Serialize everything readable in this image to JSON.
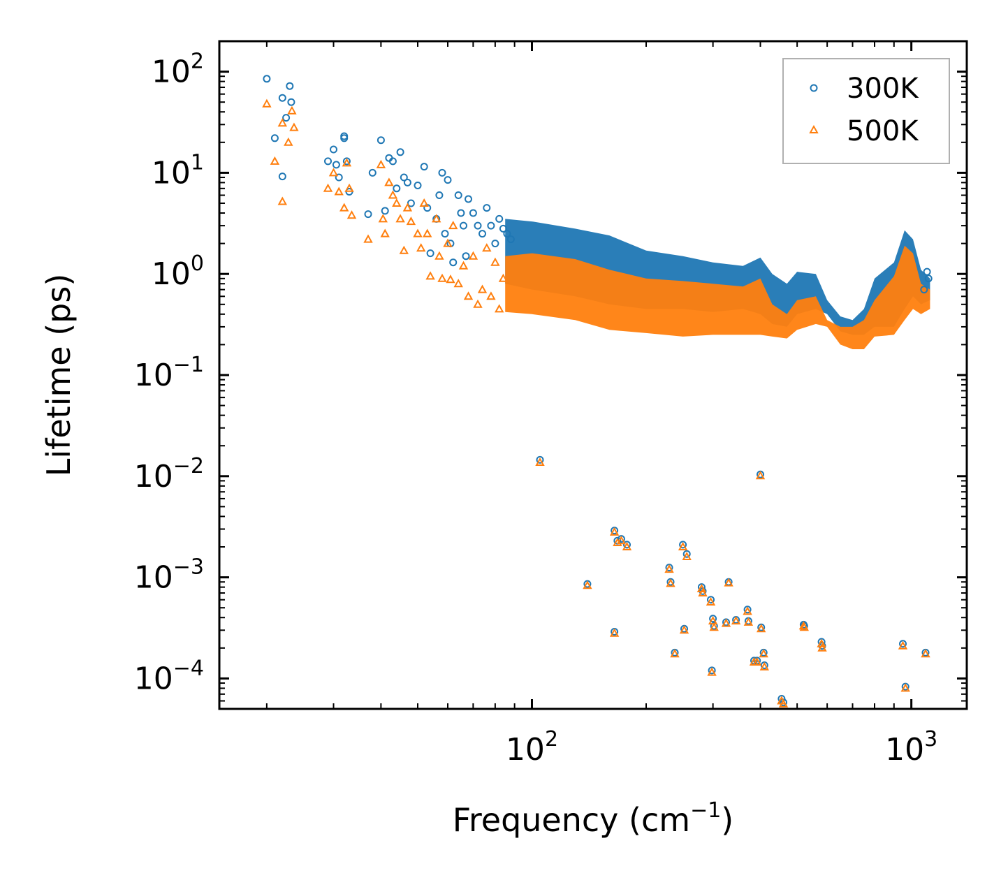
{
  "chart_data": {
    "type": "scatter",
    "title": "",
    "xlabel": "Frequency (cm",
    "xlabel_sup": "−1",
    "xlabel_end": ")",
    "ylabel": "Lifetime (ps)",
    "xscale": "log",
    "yscale": "log",
    "xlim": [
      15,
      1400
    ],
    "ylim": [
      5e-05,
      200
    ],
    "x_ticks": [
      {
        "value": 100,
        "base": "10",
        "exp": "2"
      },
      {
        "value": 1000,
        "base": "10",
        "exp": "3"
      }
    ],
    "y_ticks": [
      {
        "value": 100,
        "base": "10",
        "exp": "2"
      },
      {
        "value": 10,
        "base": "10",
        "exp": "1"
      },
      {
        "value": 1,
        "base": "10",
        "exp": "0"
      },
      {
        "value": 0.1,
        "base": "10",
        "exp": "−1"
      },
      {
        "value": 0.01,
        "base": "10",
        "exp": "−2"
      },
      {
        "value": 0.001,
        "base": "10",
        "exp": "−3"
      },
      {
        "value": 0.0001,
        "base": "10",
        "exp": "−4"
      }
    ],
    "legend_position": "top-right",
    "colors": {
      "300K": "#1f77b4",
      "500K": "#ff7f0e"
    },
    "series": [
      {
        "name": "300K",
        "marker": "circle",
        "color": "#1f77b4",
        "points": [
          [
            20,
            85
          ],
          [
            21,
            22
          ],
          [
            22,
            55
          ],
          [
            22.5,
            35
          ],
          [
            23,
            72
          ],
          [
            23.2,
            50
          ],
          [
            22,
            9.2
          ],
          [
            29,
            13
          ],
          [
            30,
            17
          ],
          [
            30.5,
            12
          ],
          [
            31,
            9
          ],
          [
            32,
            22
          ],
          [
            32,
            23
          ],
          [
            32.5,
            13
          ],
          [
            33,
            6.5
          ],
          [
            37,
            3.9
          ],
          [
            38,
            10
          ],
          [
            40,
            21
          ],
          [
            41,
            4.2
          ],
          [
            42,
            14
          ],
          [
            43,
            13
          ],
          [
            44,
            7
          ],
          [
            45,
            16
          ],
          [
            46,
            9
          ],
          [
            47,
            8
          ],
          [
            48,
            5
          ],
          [
            50,
            7.5
          ],
          [
            52,
            11.5
          ],
          [
            53,
            4.5
          ],
          [
            54,
            1.6
          ],
          [
            56,
            3.5
          ],
          [
            57,
            6
          ],
          [
            58,
            10
          ],
          [
            59,
            2.5
          ],
          [
            60,
            8.5
          ],
          [
            61,
            2
          ],
          [
            62,
            1.3
          ],
          [
            64,
            6
          ],
          [
            65,
            4
          ],
          [
            66,
            3
          ],
          [
            67,
            1.5
          ],
          [
            68,
            5.5
          ],
          [
            70,
            4
          ],
          [
            72,
            3
          ],
          [
            74,
            2.5
          ],
          [
            76,
            4.5
          ],
          [
            78,
            3
          ],
          [
            80,
            2
          ],
          [
            82,
            3.5
          ],
          [
            84,
            2.8
          ],
          [
            86,
            2.5
          ],
          [
            88,
            2.2
          ],
          [
            105,
            0.0145
          ],
          [
            140,
            0.00086
          ],
          [
            165,
            0.0029
          ],
          [
            165,
            0.00029
          ],
          [
            168,
            0.0023
          ],
          [
            172,
            0.0024
          ],
          [
            178,
            0.0021
          ],
          [
            230,
            0.00125
          ],
          [
            232,
            0.0009
          ],
          [
            238,
            0.00018
          ],
          [
            250,
            0.0021
          ],
          [
            252,
            0.00031
          ],
          [
            256,
            0.0017
          ],
          [
            280,
            0.0008
          ],
          [
            282,
            0.00073
          ],
          [
            296,
            0.0006
          ],
          [
            298,
            0.00012
          ],
          [
            300,
            0.00039
          ],
          [
            302,
            0.00033
          ],
          [
            325,
            0.00036
          ],
          [
            330,
            0.0009
          ],
          [
            345,
            0.00038
          ],
          [
            370,
            0.00048
          ],
          [
            372,
            0.00037
          ],
          [
            385,
            0.00015
          ],
          [
            392,
            0.00015
          ],
          [
            400,
            0.0104
          ],
          [
            402,
            0.00032
          ],
          [
            408,
            0.00018
          ],
          [
            410,
            0.000135
          ],
          [
            455,
            6.3e-05
          ],
          [
            460,
            5.8e-05
          ],
          [
            520,
            0.00034
          ],
          [
            522,
            0.00033
          ],
          [
            580,
            0.00023
          ],
          [
            582,
            0.00021
          ],
          [
            950,
            0.00022
          ],
          [
            965,
            8.3e-05
          ],
          [
            1090,
            0.00018
          ],
          [
            1110,
            0.9
          ],
          [
            1100,
            1.05
          ],
          [
            1080,
            0.7
          ]
        ]
      },
      {
        "name": "500K",
        "marker": "triangle",
        "color": "#ff7f0e",
        "points": [
          [
            20,
            48
          ],
          [
            21,
            13
          ],
          [
            22,
            31
          ],
          [
            22,
            5.2
          ],
          [
            22.8,
            20
          ],
          [
            23.3,
            41
          ],
          [
            23.6,
            28
          ],
          [
            29,
            7
          ],
          [
            30,
            10
          ],
          [
            31,
            6.5
          ],
          [
            32,
            4.5
          ],
          [
            32.5,
            12.5
          ],
          [
            33,
            7
          ],
          [
            33.5,
            3.8
          ],
          [
            37,
            2.2
          ],
          [
            40,
            12
          ],
          [
            40.5,
            3.5
          ],
          [
            41,
            2.5
          ],
          [
            42,
            8
          ],
          [
            43,
            6
          ],
          [
            44,
            5
          ],
          [
            45,
            3.5
          ],
          [
            46,
            1.7
          ],
          [
            47,
            4.5
          ],
          [
            48,
            3.3
          ],
          [
            50,
            2.5
          ],
          [
            51,
            1.8
          ],
          [
            52,
            5
          ],
          [
            53,
            2.5
          ],
          [
            54,
            0.95
          ],
          [
            56,
            3.5
          ],
          [
            57,
            1.5
          ],
          [
            58,
            0.9
          ],
          [
            60,
            2
          ],
          [
            61,
            0.88
          ],
          [
            62,
            3
          ],
          [
            64,
            0.8
          ],
          [
            66,
            1.2
          ],
          [
            68,
            0.6
          ],
          [
            70,
            1.5
          ],
          [
            72,
            0.5
          ],
          [
            74,
            0.7
          ],
          [
            76,
            1.8
          ],
          [
            78,
            0.6
          ],
          [
            80,
            1.3
          ],
          [
            82,
            0.45
          ],
          [
            84,
            0.9
          ],
          [
            105,
            0.0137
          ],
          [
            140,
            0.00083
          ],
          [
            165,
            0.0028
          ],
          [
            165,
            0.00028
          ],
          [
            168,
            0.0022
          ],
          [
            172,
            0.0023
          ],
          [
            178,
            0.002
          ],
          [
            230,
            0.0012
          ],
          [
            232,
            0.00087
          ],
          [
            238,
            0.000175
          ],
          [
            250,
            0.002
          ],
          [
            252,
            0.0003
          ],
          [
            256,
            0.0016
          ],
          [
            280,
            0.00077
          ],
          [
            282,
            0.0007
          ],
          [
            296,
            0.00057
          ],
          [
            298,
            0.000115
          ],
          [
            300,
            0.00037
          ],
          [
            302,
            0.00032
          ],
          [
            325,
            0.00035
          ],
          [
            330,
            0.00088
          ],
          [
            345,
            0.00037
          ],
          [
            370,
            0.00046
          ],
          [
            372,
            0.00036
          ],
          [
            385,
            0.000145
          ],
          [
            392,
            0.000145
          ],
          [
            400,
            0.0101
          ],
          [
            402,
            0.00031
          ],
          [
            408,
            0.000175
          ],
          [
            410,
            0.00013
          ],
          [
            455,
            6e-05
          ],
          [
            460,
            5.6e-05
          ],
          [
            520,
            0.00033
          ],
          [
            522,
            0.00032
          ],
          [
            580,
            0.00022
          ],
          [
            582,
            0.0002
          ],
          [
            950,
            0.00021
          ],
          [
            965,
            8e-05
          ],
          [
            1090,
            0.000175
          ]
        ]
      }
    ],
    "bands": [
      {
        "series": "300K",
        "color": "#1f77b4",
        "note": "dense cluster of overlapping points",
        "upper": [
          [
            85,
            3.5
          ],
          [
            100,
            3.3
          ],
          [
            130,
            2.8
          ],
          [
            160,
            2.4
          ],
          [
            200,
            1.7
          ],
          [
            250,
            1.5
          ],
          [
            300,
            1.3
          ],
          [
            360,
            1.2
          ],
          [
            400,
            1.45
          ],
          [
            430,
            1.0
          ],
          [
            470,
            0.8
          ],
          [
            500,
            1.05
          ],
          [
            560,
            1.0
          ],
          [
            600,
            0.55
          ],
          [
            650,
            0.38
          ],
          [
            700,
            0.35
          ],
          [
            750,
            0.45
          ],
          [
            800,
            0.9
          ],
          [
            900,
            1.3
          ],
          [
            960,
            2.7
          ],
          [
            1010,
            2.2
          ],
          [
            1060,
            1.1
          ],
          [
            1120,
            0.9
          ]
        ],
        "lower": [
          [
            1120,
            0.55
          ],
          [
            1060,
            0.5
          ],
          [
            1010,
            0.6
          ],
          [
            960,
            0.45
          ],
          [
            900,
            0.3
          ],
          [
            800,
            0.3
          ],
          [
            750,
            0.25
          ],
          [
            700,
            0.25
          ],
          [
            650,
            0.27
          ],
          [
            600,
            0.4
          ],
          [
            560,
            0.45
          ],
          [
            500,
            0.4
          ],
          [
            470,
            0.3
          ],
          [
            430,
            0.32
          ],
          [
            400,
            0.4
          ],
          [
            360,
            0.45
          ],
          [
            300,
            0.42
          ],
          [
            250,
            0.45
          ],
          [
            200,
            0.45
          ],
          [
            160,
            0.5
          ],
          [
            130,
            0.6
          ],
          [
            100,
            0.7
          ],
          [
            85,
            0.8
          ]
        ]
      },
      {
        "series": "500K",
        "color": "#ff7f0e",
        "note": "dense cluster of overlapping points",
        "upper": [
          [
            85,
            1.5
          ],
          [
            100,
            1.6
          ],
          [
            130,
            1.4
          ],
          [
            160,
            1.1
          ],
          [
            200,
            0.9
          ],
          [
            250,
            0.85
          ],
          [
            300,
            0.8
          ],
          [
            360,
            0.75
          ],
          [
            400,
            0.9
          ],
          [
            430,
            0.5
          ],
          [
            470,
            0.4
          ],
          [
            500,
            0.55
          ],
          [
            560,
            0.6
          ],
          [
            600,
            0.35
          ],
          [
            650,
            0.3
          ],
          [
            700,
            0.3
          ],
          [
            750,
            0.35
          ],
          [
            800,
            0.55
          ],
          [
            900,
            0.95
          ],
          [
            960,
            1.9
          ],
          [
            1010,
            1.6
          ],
          [
            1060,
            0.8
          ],
          [
            1120,
            0.7
          ]
        ],
        "lower": [
          [
            1120,
            0.45
          ],
          [
            1060,
            0.4
          ],
          [
            1010,
            0.45
          ],
          [
            960,
            0.35
          ],
          [
            900,
            0.25
          ],
          [
            800,
            0.24
          ],
          [
            750,
            0.18
          ],
          [
            700,
            0.18
          ],
          [
            650,
            0.2
          ],
          [
            600,
            0.3
          ],
          [
            560,
            0.32
          ],
          [
            500,
            0.28
          ],
          [
            470,
            0.23
          ],
          [
            430,
            0.24
          ],
          [
            400,
            0.25
          ],
          [
            360,
            0.25
          ],
          [
            300,
            0.25
          ],
          [
            250,
            0.24
          ],
          [
            200,
            0.26
          ],
          [
            160,
            0.28
          ],
          [
            130,
            0.35
          ],
          [
            100,
            0.4
          ],
          [
            85,
            0.42
          ]
        ]
      }
    ]
  }
}
